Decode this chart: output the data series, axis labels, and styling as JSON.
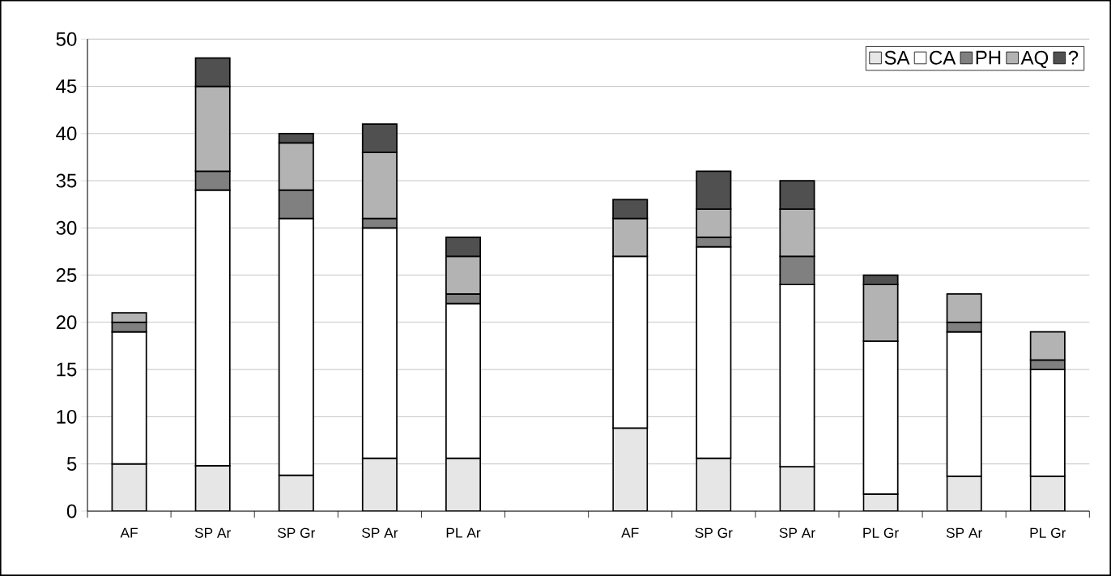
{
  "chart_data": {
    "type": "bar",
    "stacked": true,
    "categories": [
      "AF",
      "SP Ar",
      "SP Gr",
      "SP Ar",
      "PL Ar",
      null,
      "AF",
      "SP Gr",
      "SP Ar",
      "PL Gr",
      "SP Ar",
      "PL Gr"
    ],
    "series": [
      {
        "name": "SA",
        "color": "#e6e6e6",
        "values": [
          5,
          4.8,
          3.8,
          5.6,
          5.6,
          null,
          8.8,
          5.6,
          4.7,
          1.8,
          3.7,
          3.7
        ]
      },
      {
        "name": "CA",
        "color": "#ffffff",
        "values": [
          14,
          29.2,
          27.2,
          24.4,
          16.4,
          null,
          18.2,
          22.4,
          19.3,
          16.2,
          15.3,
          11.3
        ]
      },
      {
        "name": "PH",
        "color": "#808080",
        "values": [
          1,
          2,
          3,
          1,
          1,
          null,
          null,
          1,
          3,
          null,
          1,
          1
        ]
      },
      {
        "name": "AQ",
        "color": "#b3b3b3",
        "values": [
          1,
          9,
          5,
          7,
          4,
          null,
          4,
          3,
          5,
          6,
          3,
          3
        ]
      },
      {
        "name": "?",
        "color": "#505050",
        "values": [
          null,
          3,
          1,
          3,
          2,
          null,
          2,
          4,
          3,
          1,
          null,
          null
        ]
      }
    ],
    "ylim": [
      0,
      50
    ],
    "yticks": [
      0,
      5,
      10,
      15,
      20,
      25,
      30,
      35,
      40,
      45,
      50
    ],
    "grid": "y",
    "legend": "top right"
  }
}
